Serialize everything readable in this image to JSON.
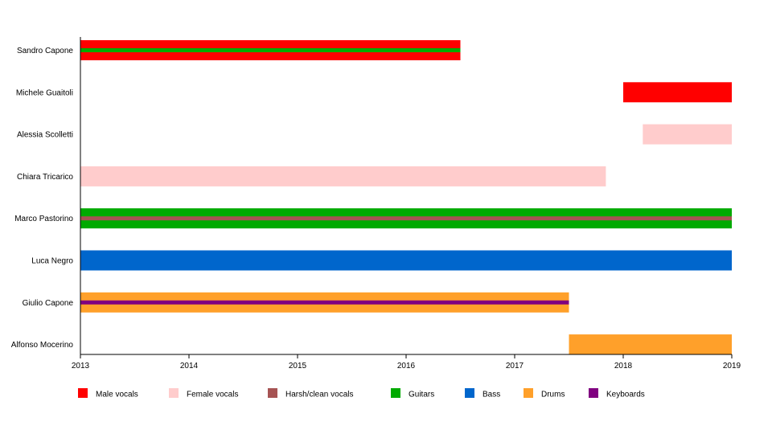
{
  "chart_data": {
    "type": "timeline",
    "title": "",
    "xlabel": "",
    "ylabel": "",
    "xlim": [
      2013,
      2019
    ],
    "x_ticks": [
      "2013",
      "2014",
      "2015",
      "2016",
      "2017",
      "2018",
      "2019"
    ],
    "roles": [
      {
        "key": "male_vocals",
        "name": "Male vocals",
        "color": "#ff0000"
      },
      {
        "key": "female_vocals",
        "name": "Female vocals",
        "color": "#ffcccc"
      },
      {
        "key": "harsh_clean_vocals",
        "name": "Harsh/clean vocals",
        "color": "#a65353"
      },
      {
        "key": "guitars",
        "name": "Guitars",
        "color": "#00aa00"
      },
      {
        "key": "bass",
        "name": "Bass",
        "color": "#0066cc"
      },
      {
        "key": "drums",
        "name": "Drums",
        "color": "#ffa02a"
      },
      {
        "key": "keyboards",
        "name": "Keyboards",
        "color": "#800080"
      }
    ],
    "members": [
      {
        "name": "Sandro Capone",
        "start": 2013,
        "end": 2016.5,
        "primary": "male_vocals",
        "secondary": "guitars"
      },
      {
        "name": "Michele Guaitoli",
        "start": 2018,
        "end": 2019,
        "primary": "male_vocals",
        "secondary": null
      },
      {
        "name": "Alessia Scolletti",
        "start": 2018.18,
        "end": 2019,
        "primary": "female_vocals",
        "secondary": null
      },
      {
        "name": "Chiara Tricarico",
        "start": 2013,
        "end": 2017.84,
        "primary": "female_vocals",
        "secondary": null
      },
      {
        "name": "Marco Pastorino",
        "start": 2013,
        "end": 2019,
        "primary": "guitars",
        "secondary": "harsh_clean_vocals"
      },
      {
        "name": "Luca Negro",
        "start": 2013,
        "end": 2019,
        "primary": "bass",
        "secondary": null
      },
      {
        "name": "Giulio Capone",
        "start": 2013,
        "end": 2017.5,
        "primary": "drums",
        "secondary": "keyboards"
      },
      {
        "name": "Alfonso Mocerino",
        "start": 2017.5,
        "end": 2019,
        "primary": "drums",
        "secondary": null
      }
    ]
  }
}
